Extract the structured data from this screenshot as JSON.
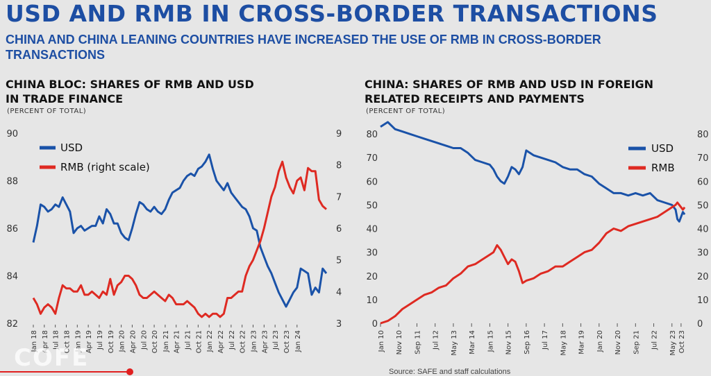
{
  "header": {
    "title": "USD AND RMB IN CROSS-BORDER TRANSACTIONS",
    "subtitle": "CHINA AND CHINA LEANING COUNTRIES HAVE INCREASED THE USE OF RMB IN CROSS-BORDER TRANSACTIONS"
  },
  "footer": {
    "source": "Source: SAFE and staff calculations",
    "logo": "COFE"
  },
  "colors": {
    "usd": "#1a52a8",
    "rmb": "#de2a22",
    "title": "#1d4ea3",
    "background": "#e6e6e6"
  },
  "chart_data": [
    {
      "type": "line",
      "title": "CHINA BLOC: SHARES OF RMB AND USD IN TRADE FINANCE",
      "unit": "(PERCENT OF TOTAL)",
      "legend_position": "top-left",
      "grid": false,
      "x_ticks": [
        "Jan 18",
        "Apr 18",
        "Jul 18",
        "Oct 18",
        "Jan 19",
        "Apr 19",
        "Jul 19",
        "Oct 19",
        "Jan 20",
        "Apr 20",
        "Jul 20",
        "Oct 20",
        "Jan 21",
        "Apr 21",
        "Jul 21",
        "Oct 21",
        "Jan 22",
        "Apr 22",
        "Jul 22",
        "Oct 22",
        "Jan 23",
        "Apr 23",
        "Jul 23",
        "Oct 23",
        "Jan 24"
      ],
      "y_left": {
        "range": [
          82,
          90
        ],
        "ticks": [
          82,
          84,
          86,
          88,
          90
        ]
      },
      "y_right": {
        "range": [
          3,
          9
        ],
        "ticks": [
          3,
          4,
          5,
          6,
          7,
          8,
          9
        ]
      },
      "x_months": 81,
      "series": [
        {
          "name": "USD",
          "axis": "left",
          "values": [
            85.4,
            86.1,
            87.0,
            86.9,
            86.7,
            86.8,
            87.0,
            86.9,
            87.3,
            87.0,
            86.7,
            85.8,
            86.0,
            86.1,
            85.9,
            86.0,
            86.1,
            86.1,
            86.5,
            86.2,
            86.8,
            86.6,
            86.2,
            86.2,
            85.8,
            85.6,
            85.5,
            86.0,
            86.6,
            87.1,
            87.0,
            86.8,
            86.7,
            86.9,
            86.7,
            86.6,
            86.8,
            87.2,
            87.5,
            87.6,
            87.7,
            88.0,
            88.2,
            88.3,
            88.2,
            88.5,
            88.6,
            88.8,
            89.1,
            88.5,
            88.0,
            87.8,
            87.6,
            87.9,
            87.5,
            87.3,
            87.1,
            86.9,
            86.8,
            86.5,
            86.0,
            85.9,
            85.2,
            84.8,
            84.4,
            84.1,
            83.7,
            83.3,
            83.0,
            82.7,
            83.0,
            83.3,
            83.5,
            84.3,
            84.2,
            84.1,
            83.2,
            83.5,
            83.3,
            84.3,
            84.1
          ]
        },
        {
          "name": "RMB (right scale)",
          "axis": "right",
          "values": [
            3.8,
            3.6,
            3.3,
            3.5,
            3.6,
            3.5,
            3.3,
            3.8,
            4.2,
            4.1,
            4.1,
            4.0,
            4.0,
            4.2,
            3.9,
            3.9,
            4.0,
            3.9,
            3.8,
            4.0,
            3.9,
            4.4,
            3.9,
            4.2,
            4.3,
            4.5,
            4.5,
            4.4,
            4.2,
            3.9,
            3.8,
            3.8,
            3.9,
            4.0,
            3.9,
            3.8,
            3.7,
            3.9,
            3.8,
            3.6,
            3.6,
            3.6,
            3.7,
            3.6,
            3.5,
            3.3,
            3.2,
            3.3,
            3.2,
            3.3,
            3.3,
            3.2,
            3.3,
            3.8,
            3.8,
            3.9,
            4.0,
            4.0,
            4.5,
            4.8,
            5.0,
            5.3,
            5.6,
            6.0,
            6.5,
            7.0,
            7.3,
            7.8,
            8.1,
            7.6,
            7.3,
            7.1,
            7.5,
            7.6,
            7.2,
            7.9,
            7.8,
            7.8,
            6.9,
            6.7,
            6.6
          ]
        }
      ]
    },
    {
      "type": "line",
      "title": "CHINA: SHARES OF RMB AND USD IN FOREIGN RELATED RECEIPTS AND PAYMENTS",
      "unit": "(PERCENT OF TOTAL)",
      "legend_position": "top-right",
      "grid": false,
      "x_ticks": [
        "Jan 10",
        "Nov 10",
        "Sep 11",
        "Jul 12",
        "May 13",
        "Mar 14",
        "Jan 15",
        "Nov 15",
        "Sep 16",
        "Jul 17",
        "May 18",
        "Mar 19",
        "Jan 20",
        "Nov 20",
        "Sep 21",
        "Jul 22",
        "May 23",
        "Oct 23"
      ],
      "y_left": {
        "range": [
          0,
          85
        ],
        "ticks": [
          0,
          10,
          20,
          30,
          40,
          50,
          60,
          70,
          80
        ]
      },
      "y_right": {
        "range": [
          0,
          85
        ],
        "ticks": [
          0,
          10,
          20,
          30,
          40,
          50,
          60,
          70,
          80
        ]
      },
      "series": [
        {
          "name": "USD",
          "axis": "left",
          "x": [
            0,
            4,
            8,
            12,
            16,
            20,
            24,
            28,
            32,
            36,
            40,
            44,
            48,
            52,
            56,
            60,
            62,
            64,
            66,
            68,
            70,
            72,
            74,
            76,
            78,
            80,
            84,
            88,
            92,
            96,
            100,
            104,
            108,
            112,
            116,
            120,
            124,
            128,
            132,
            136,
            140,
            144,
            148,
            152,
            156,
            160,
            162,
            163,
            164,
            165,
            166,
            167
          ],
          "values": [
            83,
            85,
            82,
            81,
            80,
            79,
            78,
            77,
            76,
            75,
            74,
            74,
            72,
            69,
            68,
            67,
            65,
            62,
            60,
            59,
            62,
            66,
            65,
            63,
            66,
            73,
            71,
            70,
            69,
            68,
            66,
            65,
            65,
            63,
            62,
            59,
            57,
            55,
            55,
            54,
            55,
            54,
            55,
            52,
            51,
            50,
            48,
            44,
            43,
            45,
            47,
            46
          ]
        },
        {
          "name": "RMB",
          "axis": "right",
          "x": [
            0,
            4,
            8,
            12,
            16,
            20,
            24,
            28,
            32,
            36,
            40,
            44,
            48,
            52,
            56,
            60,
            62,
            64,
            66,
            68,
            70,
            72,
            74,
            76,
            78,
            80,
            84,
            88,
            92,
            96,
            100,
            104,
            108,
            112,
            116,
            120,
            124,
            128,
            132,
            136,
            140,
            144,
            148,
            152,
            156,
            160,
            162,
            163,
            164,
            165,
            166,
            167
          ],
          "values": [
            0,
            1,
            3,
            6,
            8,
            10,
            12,
            13,
            15,
            16,
            19,
            21,
            24,
            25,
            27,
            29,
            30,
            33,
            31,
            28,
            25,
            27,
            26,
            22,
            17,
            18,
            19,
            21,
            22,
            24,
            24,
            26,
            28,
            30,
            31,
            34,
            38,
            40,
            39,
            41,
            42,
            43,
            44,
            45,
            47,
            49,
            50,
            51,
            50,
            49,
            48,
            49
          ]
        }
      ]
    }
  ]
}
